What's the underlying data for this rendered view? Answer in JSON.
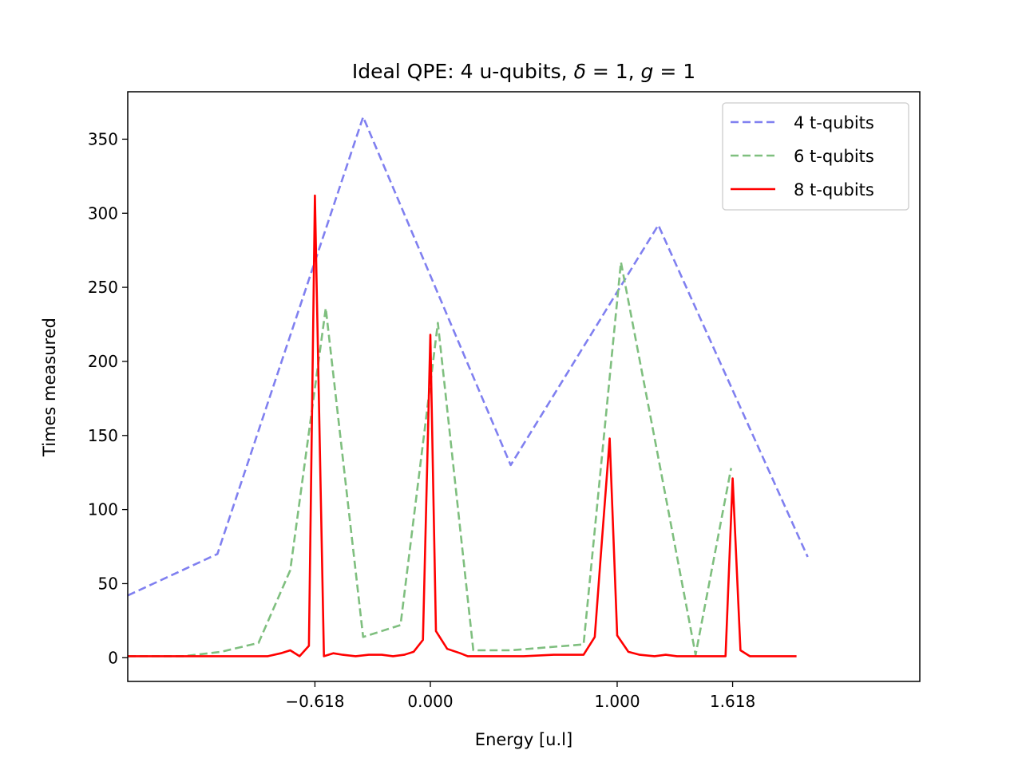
{
  "chart_data": {
    "type": "line",
    "title": "Ideal QPE: 4 u-qubits, δ = 1, g = 1",
    "title_parts": {
      "prefix": "Ideal QPE: 4 u-qubits, ",
      "delta_symbol": "δ",
      "delta_value": " = 1, ",
      "g_symbol": "g",
      "g_value": " = 1"
    },
    "xlabel": "Energy [u.l]",
    "ylabel": "Times measured",
    "xlim": [
      -1.62,
      2.62
    ],
    "ylim": [
      -16,
      382
    ],
    "x_ticks": [
      {
        "value": -0.618,
        "label": "−0.618"
      },
      {
        "value": 0.0,
        "label": "0.000"
      },
      {
        "value": 1.0,
        "label": "1.000"
      },
      {
        "value": 1.618,
        "label": "1.618"
      }
    ],
    "y_ticks": [
      {
        "value": 0,
        "label": "0"
      },
      {
        "value": 50,
        "label": "50"
      },
      {
        "value": 100,
        "label": "100"
      },
      {
        "value": 150,
        "label": "150"
      },
      {
        "value": 200,
        "label": "200"
      },
      {
        "value": 250,
        "label": "250"
      },
      {
        "value": 300,
        "label": "300"
      },
      {
        "value": 350,
        "label": "350"
      }
    ],
    "grid": false,
    "legend_position": "top-right",
    "series": [
      {
        "name": "4 t-qubits",
        "color": "#8080f0",
        "style": "dashed",
        "x": [
          -1.62,
          -1.14,
          -0.36,
          0.43,
          1.22,
          2.02
        ],
        "y": [
          42,
          70,
          365,
          130,
          292,
          68
        ]
      },
      {
        "name": "6 t-qubits",
        "color": "#7fbf7f",
        "style": "dashed",
        "x": [
          -1.62,
          -1.32,
          -1.12,
          -0.92,
          -0.75,
          -0.56,
          -0.36,
          -0.16,
          0.04,
          0.23,
          0.43,
          0.82,
          1.02,
          1.22,
          1.42,
          1.61
        ],
        "y": [
          1,
          1,
          4,
          10,
          59,
          236,
          14,
          22,
          226,
          5,
          5,
          9,
          267,
          135,
          2,
          128
        ]
      },
      {
        "name": "8 t-qubits",
        "color": "#ff0000",
        "style": "solid",
        "x": [
          -1.62,
          -1.47,
          -1.37,
          -1.27,
          -1.17,
          -1.07,
          -0.97,
          -0.87,
          -0.8,
          -0.75,
          -0.7,
          -0.65,
          -0.618,
          -0.57,
          -0.52,
          -0.47,
          -0.4,
          -0.33,
          -0.26,
          -0.2,
          -0.14,
          -0.09,
          -0.04,
          0.0,
          0.03,
          0.09,
          0.16,
          0.2,
          0.26,
          0.36,
          0.5,
          0.66,
          0.82,
          0.88,
          0.91,
          0.96,
          1.0,
          1.06,
          1.12,
          1.2,
          1.26,
          1.32,
          1.44,
          1.48,
          1.58,
          1.618,
          1.66,
          1.71,
          1.96
        ],
        "y": [
          1,
          1,
          1,
          1,
          1,
          1,
          1,
          1,
          3,
          5,
          1,
          8,
          312,
          1,
          3,
          2,
          1,
          2,
          2,
          1,
          2,
          4,
          12,
          218,
          18,
          6,
          3,
          1,
          1,
          1,
          1,
          2,
          2,
          14,
          65,
          148,
          15,
          4,
          2,
          1,
          2,
          1,
          1,
          1,
          1,
          121,
          5,
          1,
          1
        ]
      }
    ]
  }
}
